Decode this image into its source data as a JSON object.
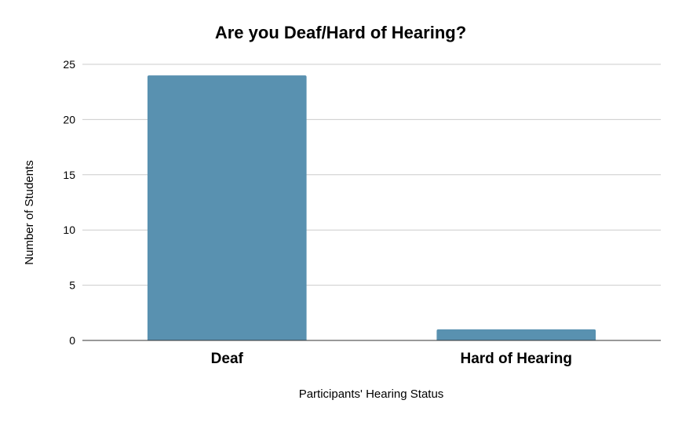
{
  "chart_data": {
    "type": "bar",
    "title": "Are you Deaf/Hard of Hearing?",
    "xlabel": "Participants' Hearing Status",
    "ylabel": "Number of Students",
    "categories": [
      "Deaf",
      "Hard of Hearing"
    ],
    "values": [
      24,
      1
    ],
    "ylim": [
      0,
      25
    ],
    "yticks": [
      "0",
      "5",
      "10",
      "15",
      "20",
      "25"
    ],
    "grid": true,
    "legend": "none",
    "colors": {
      "bar": "#5991b0",
      "grid": "#cccccc",
      "axis": "#333333"
    }
  }
}
